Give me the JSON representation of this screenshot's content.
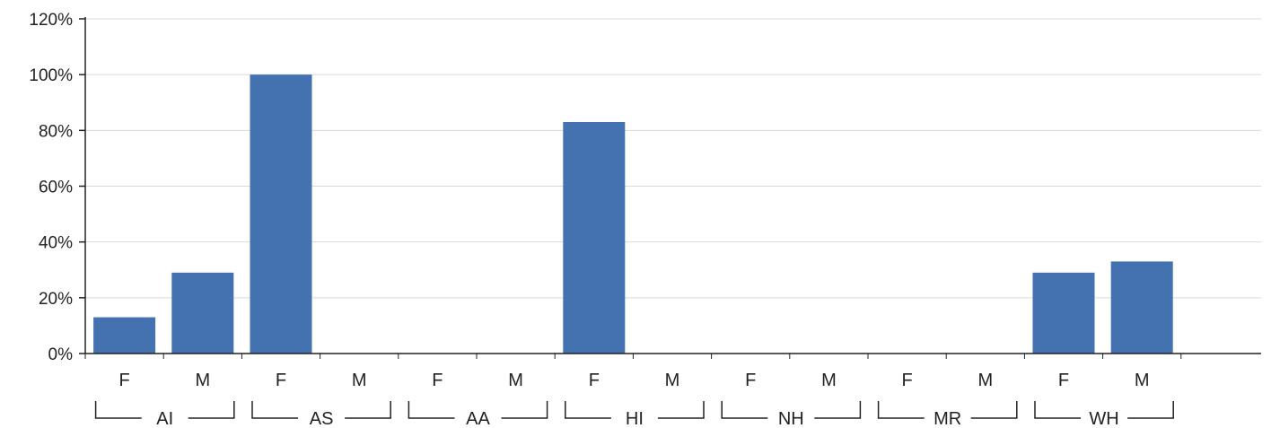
{
  "chart_data": {
    "type": "bar",
    "title": "",
    "xlabel": "",
    "ylabel": "",
    "ylim": [
      0,
      1.2
    ],
    "y_ticks": [
      {
        "value": 0,
        "label": "0%"
      },
      {
        "value": 0.2,
        "label": "20%"
      },
      {
        "value": 0.4,
        "label": "40%"
      },
      {
        "value": 0.6,
        "label": "60%"
      },
      {
        "value": 0.8,
        "label": "80%"
      },
      {
        "value": 1.0,
        "label": "100%"
      },
      {
        "value": 1.2,
        "label": "120%"
      }
    ],
    "grid": true,
    "legend": "none",
    "bar_color": "#4472b0",
    "groups": [
      {
        "name": "AI",
        "categories": [
          {
            "label": "F",
            "value": 0.13
          },
          {
            "label": "M",
            "value": 0.29
          }
        ]
      },
      {
        "name": "AS",
        "categories": [
          {
            "label": "F",
            "value": 1.0
          },
          {
            "label": "M",
            "value": 0
          }
        ]
      },
      {
        "name": "AA",
        "categories": [
          {
            "label": "F",
            "value": 0
          },
          {
            "label": "M",
            "value": 0
          }
        ]
      },
      {
        "name": "HI",
        "categories": [
          {
            "label": "F",
            "value": 0.83
          },
          {
            "label": "M",
            "value": 0
          }
        ]
      },
      {
        "name": "NH",
        "categories": [
          {
            "label": "F",
            "value": 0
          },
          {
            "label": "M",
            "value": 0
          }
        ]
      },
      {
        "name": "MR",
        "categories": [
          {
            "label": "F",
            "value": 0
          },
          {
            "label": "M",
            "value": 0
          }
        ]
      },
      {
        "name": "WH",
        "categories": [
          {
            "label": "F",
            "value": 0.29
          },
          {
            "label": "M",
            "value": 0.33
          }
        ]
      }
    ]
  }
}
